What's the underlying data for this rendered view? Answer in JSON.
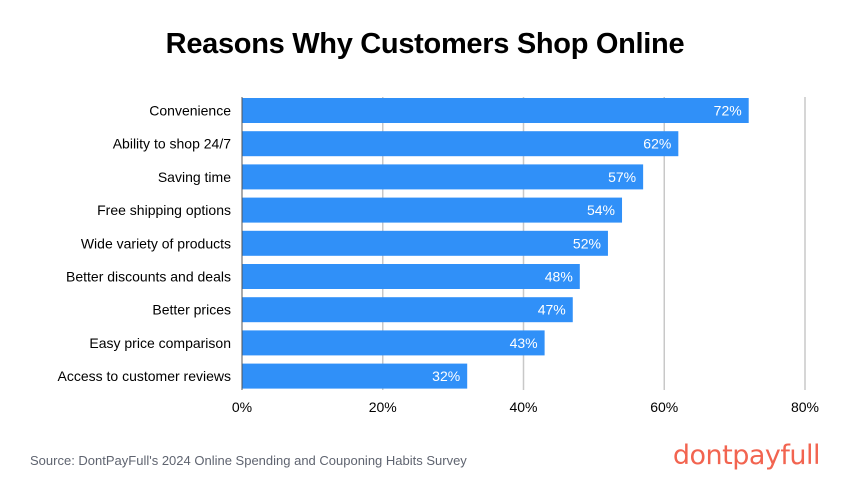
{
  "chart_data": {
    "type": "bar",
    "orientation": "horizontal",
    "title": "Reasons Why Customers Shop Online",
    "categories": [
      "Convenience",
      "Ability to shop 24/7",
      "Saving time",
      "Free shipping options",
      "Wide variety of products",
      "Better discounts and deals",
      "Better prices",
      "Easy price comparison",
      "Access to customer reviews"
    ],
    "values": [
      72,
      62,
      57,
      54,
      52,
      48,
      47,
      43,
      32
    ],
    "data_labels": [
      "72%",
      "62%",
      "57%",
      "54%",
      "52%",
      "48%",
      "47%",
      "43%",
      "32%"
    ],
    "xlim": [
      0,
      80
    ],
    "xticks": [
      0,
      20,
      40,
      60,
      80
    ],
    "xtick_labels": [
      "0%",
      "20%",
      "40%",
      "60%",
      "80%"
    ],
    "grid": "vertical",
    "bar_color": "#3090f8"
  },
  "footer": {
    "source": "Source: DontPayFull's 2024 Online Spending and Couponing Habits Survey",
    "logo": "dontpayfull",
    "logo_color": "#f26450"
  }
}
